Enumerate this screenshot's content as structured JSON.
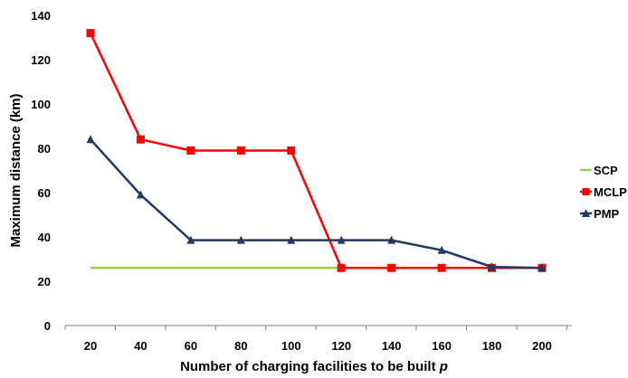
{
  "chart_data": {
    "type": "line",
    "x": [
      20,
      40,
      60,
      80,
      100,
      120,
      140,
      160,
      180,
      200
    ],
    "xlabel_text": "Number of charging facilities to be built ",
    "xlabel_var": "p",
    "ylabel": "Maximum distance (km)",
    "ylim": [
      0,
      140
    ],
    "yticks": [
      0,
      20,
      40,
      60,
      80,
      100,
      120,
      140
    ],
    "grid": false,
    "legend_position": "right",
    "series": [
      {
        "name": "SCP",
        "color": "#92d050",
        "marker": "none",
        "values": [
          26,
          26,
          26,
          26,
          26,
          26,
          26,
          26,
          26,
          26
        ]
      },
      {
        "name": "MCLP",
        "color": "#ff0000",
        "marker": "square",
        "values": [
          132,
          84,
          79,
          79,
          79,
          26,
          26,
          26,
          26,
          26
        ]
      },
      {
        "name": "PMP",
        "color": "#1f3864",
        "marker": "triangle",
        "values": [
          84,
          59,
          38.5,
          38.5,
          38.5,
          38.5,
          38.5,
          34,
          26.5,
          26
        ]
      }
    ]
  }
}
